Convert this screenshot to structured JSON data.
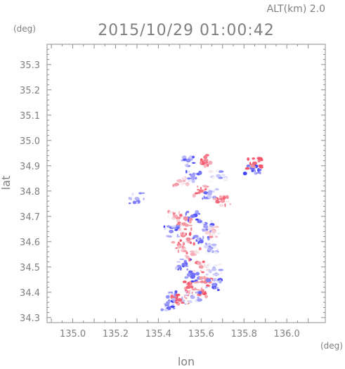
{
  "header": {
    "altitude_label": "ALT(km) 2.0",
    "timestamp": "2015/10/29 01:00:42",
    "y_unit": "(deg)",
    "x_unit": "(deg)"
  },
  "colors": {
    "axis": "#8c8c8c",
    "text": "#7f7f7f",
    "positive": "#e84a5f",
    "negative": "#3d3df0",
    "neutral": "#dcdcf5"
  },
  "chart_data": {
    "type": "heatmap",
    "title": "2015/10/29 01:00:42",
    "xlabel": "lon",
    "ylabel": "lat",
    "xlim": [
      134.88,
      136.18
    ],
    "ylim": [
      34.28,
      35.38
    ],
    "x_ticks": [
      "135.0",
      "135.2",
      "135.4",
      "135.6",
      "135.8",
      "136.0"
    ],
    "y_ticks": [
      "34.3",
      "34.4",
      "34.5",
      "34.6",
      "34.7",
      "34.8",
      "34.9",
      "35.0",
      "35.1",
      "35.2",
      "35.3"
    ],
    "grid": false,
    "clusters": [
      {
        "lon": 135.54,
        "lat": 34.92,
        "intensity": -0.6
      },
      {
        "lon": 135.62,
        "lat": 34.92,
        "intensity": 0.7
      },
      {
        "lon": 135.56,
        "lat": 34.86,
        "intensity": -0.5
      },
      {
        "lon": 135.5,
        "lat": 34.84,
        "intensity": 0.4
      },
      {
        "lon": 135.68,
        "lat": 34.86,
        "intensity": -0.3
      },
      {
        "lon": 135.6,
        "lat": 34.8,
        "intensity": 0.8
      },
      {
        "lon": 135.64,
        "lat": 34.79,
        "intensity": -0.4
      },
      {
        "lon": 135.7,
        "lat": 34.76,
        "intensity": 0.6
      },
      {
        "lon": 135.84,
        "lat": 34.89,
        "intensity": -0.8
      },
      {
        "lon": 135.85,
        "lat": 34.91,
        "intensity": 0.9
      },
      {
        "lon": 135.3,
        "lat": 34.77,
        "intensity": -0.4
      },
      {
        "lon": 135.48,
        "lat": 34.7,
        "intensity": 0.5
      },
      {
        "lon": 135.56,
        "lat": 34.7,
        "intensity": -0.7
      },
      {
        "lon": 135.52,
        "lat": 34.67,
        "intensity": 0.6
      },
      {
        "lon": 135.62,
        "lat": 34.66,
        "intensity": -0.5
      },
      {
        "lon": 135.66,
        "lat": 34.64,
        "intensity": 0.3
      },
      {
        "lon": 135.46,
        "lat": 34.64,
        "intensity": -0.6
      },
      {
        "lon": 135.54,
        "lat": 34.61,
        "intensity": 0.7
      },
      {
        "lon": 135.6,
        "lat": 34.6,
        "intensity": -0.8
      },
      {
        "lon": 135.5,
        "lat": 34.58,
        "intensity": 0.4
      },
      {
        "lon": 135.64,
        "lat": 34.57,
        "intensity": -0.4
      },
      {
        "lon": 135.56,
        "lat": 34.55,
        "intensity": 0.5
      },
      {
        "lon": 135.52,
        "lat": 34.51,
        "intensity": -0.7
      },
      {
        "lon": 135.6,
        "lat": 34.5,
        "intensity": 0.6
      },
      {
        "lon": 135.66,
        "lat": 34.49,
        "intensity": -0.3
      },
      {
        "lon": 135.56,
        "lat": 34.46,
        "intensity": -0.8
      },
      {
        "lon": 135.62,
        "lat": 34.44,
        "intensity": 0.7
      },
      {
        "lon": 135.54,
        "lat": 34.42,
        "intensity": 0.9
      },
      {
        "lon": 135.6,
        "lat": 34.4,
        "intensity": 0.8
      },
      {
        "lon": 135.48,
        "lat": 34.38,
        "intensity": -0.5
      },
      {
        "lon": 135.5,
        "lat": 34.37,
        "intensity": 0.9
      },
      {
        "lon": 135.44,
        "lat": 34.35,
        "intensity": -0.6
      },
      {
        "lon": 135.56,
        "lat": 34.38,
        "intensity": -0.4
      },
      {
        "lon": 135.66,
        "lat": 34.43,
        "intensity": -0.6
      }
    ]
  }
}
